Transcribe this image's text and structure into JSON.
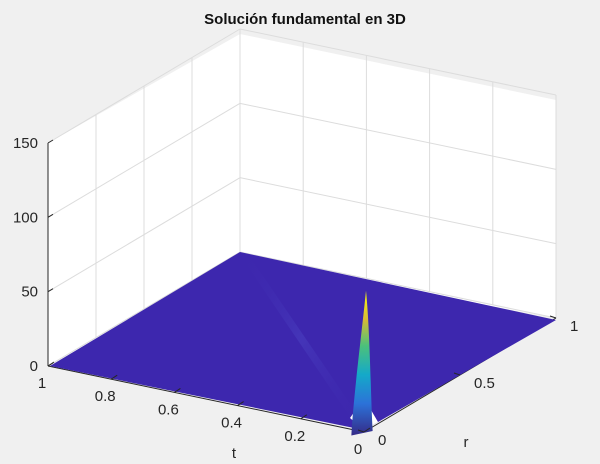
{
  "chart_data": {
    "type": "surface",
    "title": "Solución fundamental en 3D",
    "xlabel": "t",
    "ylabel": "r",
    "zlabel": "",
    "t_range": [
      0,
      1
    ],
    "r_range": [
      0,
      1
    ],
    "z_range": [
      0,
      150
    ],
    "t_ticks": [
      "1",
      "0.8",
      "0.6",
      "0.4",
      "0.2",
      "0"
    ],
    "r_ticks": [
      "0",
      "0.5",
      "1"
    ],
    "z_ticks": [
      "0",
      "50",
      "100",
      "150"
    ],
    "grid": true,
    "colormap": "parula",
    "peak": {
      "t": 0,
      "r": 0,
      "z": 95
    },
    "surface_color": "#3d27ae",
    "pane_color": "#ffffff",
    "figure_color": "#f0f0f0"
  }
}
